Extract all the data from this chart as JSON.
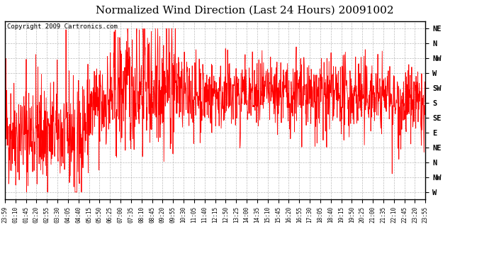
{
  "title": "Normalized Wind Direction (Last 24 Hours) 20091002",
  "copyright": "Copyright 2009 Cartronics.com",
  "ytick_labels": [
    "NE",
    "N",
    "NW",
    "W",
    "SW",
    "S",
    "SE",
    "E",
    "NE",
    "N",
    "NW",
    "W"
  ],
  "ytick_values": [
    11,
    10,
    9,
    8,
    7,
    6,
    5,
    4,
    3,
    2,
    1,
    0
  ],
  "xtick_labels": [
    "23:59",
    "01:10",
    "01:45",
    "02:20",
    "02:55",
    "03:30",
    "04:05",
    "04:40",
    "05:15",
    "05:50",
    "06:25",
    "07:00",
    "07:35",
    "08:10",
    "08:45",
    "09:20",
    "09:55",
    "10:30",
    "11:05",
    "11:40",
    "12:15",
    "12:50",
    "13:25",
    "14:00",
    "14:35",
    "15:10",
    "15:45",
    "16:20",
    "16:55",
    "17:30",
    "18:05",
    "18:40",
    "19:15",
    "19:50",
    "20:25",
    "21:00",
    "21:35",
    "22:10",
    "22:45",
    "23:20",
    "23:55"
  ],
  "line_color": "#ff0000",
  "bg_color": "#ffffff",
  "grid_color": "#aaaaaa",
  "title_fontsize": 11,
  "copyright_fontsize": 6.5
}
